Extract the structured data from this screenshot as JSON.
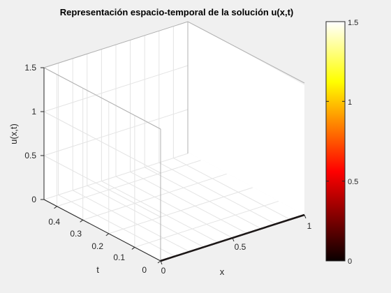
{
  "chart_data": {
    "type": "surface",
    "title": "Representación espacio-temporal de la solución u(x,t)",
    "xlabel": "x",
    "ylabel": "t",
    "zlabel": "u(x,t)",
    "xlim": [
      0,
      1
    ],
    "ylim": [
      0,
      0.45
    ],
    "zlim": [
      0,
      1.5
    ],
    "x_ticks": [
      0,
      0.5,
      1
    ],
    "x_tick_labels": [
      "0",
      "0.5",
      "1"
    ],
    "y_ticks": [
      0,
      0.1,
      0.2,
      0.3,
      0.4
    ],
    "y_tick_labels": [
      "0",
      "0.1",
      "0.2",
      "0.3",
      "0.4"
    ],
    "z_ticks": [
      0,
      0.5,
      1,
      1.5
    ],
    "z_tick_labels": [
      "0",
      "0.5",
      "1",
      "1.5"
    ],
    "surface_values": "u ≈ 0 across the visible domain (flat dark surface line along t = 0)",
    "colormap": "hot",
    "grid": true,
    "colorbar": {
      "limits": [
        0,
        1.5
      ],
      "ticks": [
        0,
        0.5,
        1,
        1.5
      ],
      "tick_labels": [
        "0",
        "0.5",
        "1",
        "1.5"
      ],
      "placement": "right"
    }
  }
}
